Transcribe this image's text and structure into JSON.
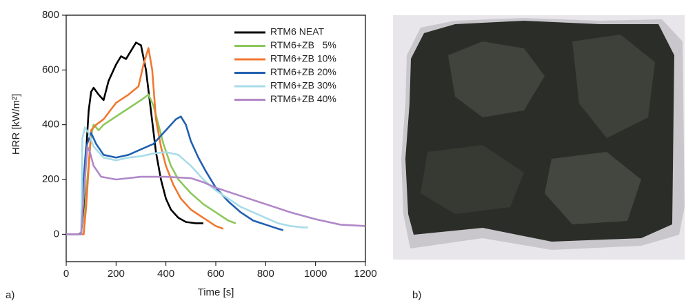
{
  "chart_data": {
    "type": "line",
    "panel_label": "a)",
    "x_label": "Time [s]",
    "y_label": "HRR [kW/m²]",
    "xlim": [
      0,
      1200
    ],
    "xticks": [
      0,
      200,
      400,
      600,
      800,
      1000,
      1200
    ],
    "ylim": [
      -100,
      800
    ],
    "yticks": [
      0,
      200,
      400,
      600,
      800
    ],
    "legend": "top-right",
    "series": [
      {
        "name": "RTM6 NEAT",
        "color": "#000000",
        "x": [
          0,
          50,
          60,
          70,
          80,
          90,
          100,
          110,
          130,
          150,
          170,
          200,
          220,
          240,
          260,
          280,
          300,
          320,
          340,
          360,
          380,
          400,
          420,
          450,
          480,
          520,
          550
        ],
        "values": [
          0,
          0,
          5,
          100,
          300,
          450,
          520,
          535,
          510,
          490,
          560,
          620,
          650,
          640,
          670,
          700,
          690,
          600,
          450,
          300,
          200,
          130,
          90,
          60,
          45,
          40,
          40
        ]
      },
      {
        "name": "RTM6+ZB   5%",
        "color": "#8cc85a",
        "x": [
          0,
          70,
          80,
          100,
          110,
          130,
          150,
          200,
          250,
          300,
          330,
          350,
          370,
          390,
          420,
          450,
          500,
          550,
          600,
          650,
          680
        ],
        "values": [
          0,
          0,
          150,
          360,
          400,
          380,
          400,
          430,
          460,
          490,
          510,
          470,
          400,
          330,
          250,
          200,
          150,
          110,
          80,
          50,
          40
        ]
      },
      {
        "name": "RTM6+ZB 10%",
        "color": "#f07830",
        "x": [
          0,
          70,
          80,
          100,
          120,
          150,
          200,
          250,
          290,
          310,
          330,
          345,
          360,
          380,
          400,
          430,
          460,
          500,
          550,
          600,
          630
        ],
        "values": [
          0,
          0,
          100,
          380,
          400,
          420,
          480,
          510,
          540,
          620,
          680,
          600,
          420,
          320,
          250,
          180,
          130,
          90,
          60,
          30,
          20
        ]
      },
      {
        "name": "RTM6+ZB 20%",
        "color": "#2060b0",
        "x": [
          0,
          60,
          70,
          80,
          100,
          120,
          150,
          200,
          250,
          300,
          350,
          400,
          440,
          460,
          480,
          500,
          530,
          560,
          600,
          650,
          700,
          750,
          800,
          850,
          870
        ],
        "values": [
          0,
          0,
          200,
          320,
          370,
          330,
          290,
          280,
          290,
          310,
          330,
          380,
          420,
          430,
          400,
          340,
          280,
          230,
          170,
          120,
          80,
          50,
          35,
          20,
          15
        ]
      },
      {
        "name": "RTM6+ZB 30%",
        "color": "#a8dce8",
        "x": [
          0,
          60,
          65,
          75,
          90,
          110,
          150,
          200,
          250,
          300,
          350,
          400,
          450,
          500,
          550,
          600,
          650,
          700,
          750,
          800,
          850,
          900,
          950,
          970
        ],
        "values": [
          0,
          0,
          350,
          390,
          370,
          320,
          280,
          270,
          280,
          285,
          295,
          300,
          290,
          250,
          200,
          160,
          130,
          100,
          80,
          60,
          40,
          30,
          25,
          25
        ]
      },
      {
        "name": "RTM6+ZB 40%",
        "color": "#b088c8",
        "x": [
          0,
          60,
          75,
          85,
          95,
          110,
          140,
          200,
          300,
          400,
          500,
          550,
          600,
          700,
          800,
          900,
          1000,
          1100,
          1200
        ],
        "values": [
          0,
          0,
          200,
          320,
          300,
          250,
          210,
          200,
          210,
          210,
          205,
          190,
          170,
          140,
          110,
          80,
          55,
          35,
          30
        ]
      }
    ]
  },
  "photo": {
    "label": "b)"
  }
}
